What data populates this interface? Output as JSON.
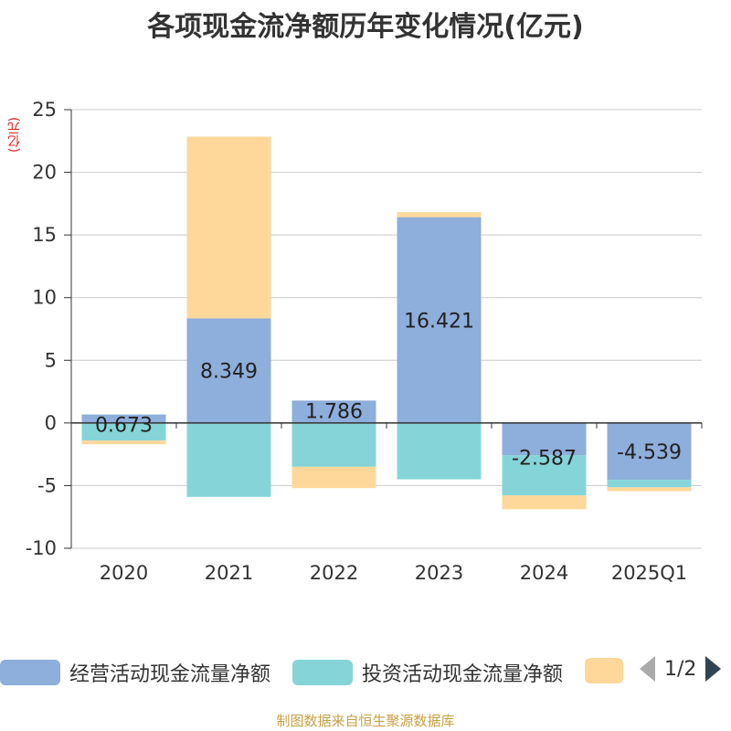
{
  "title": "各项现金流净额历年变化情况(亿元)",
  "unit_label": "(亿元)",
  "chart_data": {
    "type": "bar",
    "stacked": true,
    "title": "各项现金流净额历年变化情况(亿元)",
    "ylabel": "(亿元)",
    "ylim": [
      -10,
      25
    ],
    "yticks": [
      -10,
      -5,
      0,
      5,
      10,
      15,
      20,
      25
    ],
    "categories": [
      "2020",
      "2021",
      "2022",
      "2023",
      "2024",
      "2025Q1"
    ],
    "series": [
      {
        "name": "经营活动现金流量净额",
        "color": "#8eaedb",
        "values": [
          0.673,
          8.349,
          1.786,
          16.421,
          -2.587,
          -4.539
        ],
        "labels": [
          "0.673",
          "8.349",
          "1.786",
          "16.421",
          "-2.587",
          "-4.539"
        ]
      },
      {
        "name": "投资活动现金流量净额",
        "color": "#85d5d8",
        "values": [
          -1.4,
          -5.9,
          -3.5,
          -4.5,
          -3.2,
          -0.6
        ]
      },
      {
        "name": "",
        "color": "#fdd89a",
        "values": [
          -0.3,
          14.5,
          -1.7,
          0.4,
          -1.1,
          -0.3
        ]
      }
    ]
  },
  "legend": {
    "items": [
      "经营活动现金流量净额",
      "投资活动现金流量净额",
      ""
    ],
    "page": "1/2"
  },
  "footer": "制图数据来自恒生聚源数据库"
}
